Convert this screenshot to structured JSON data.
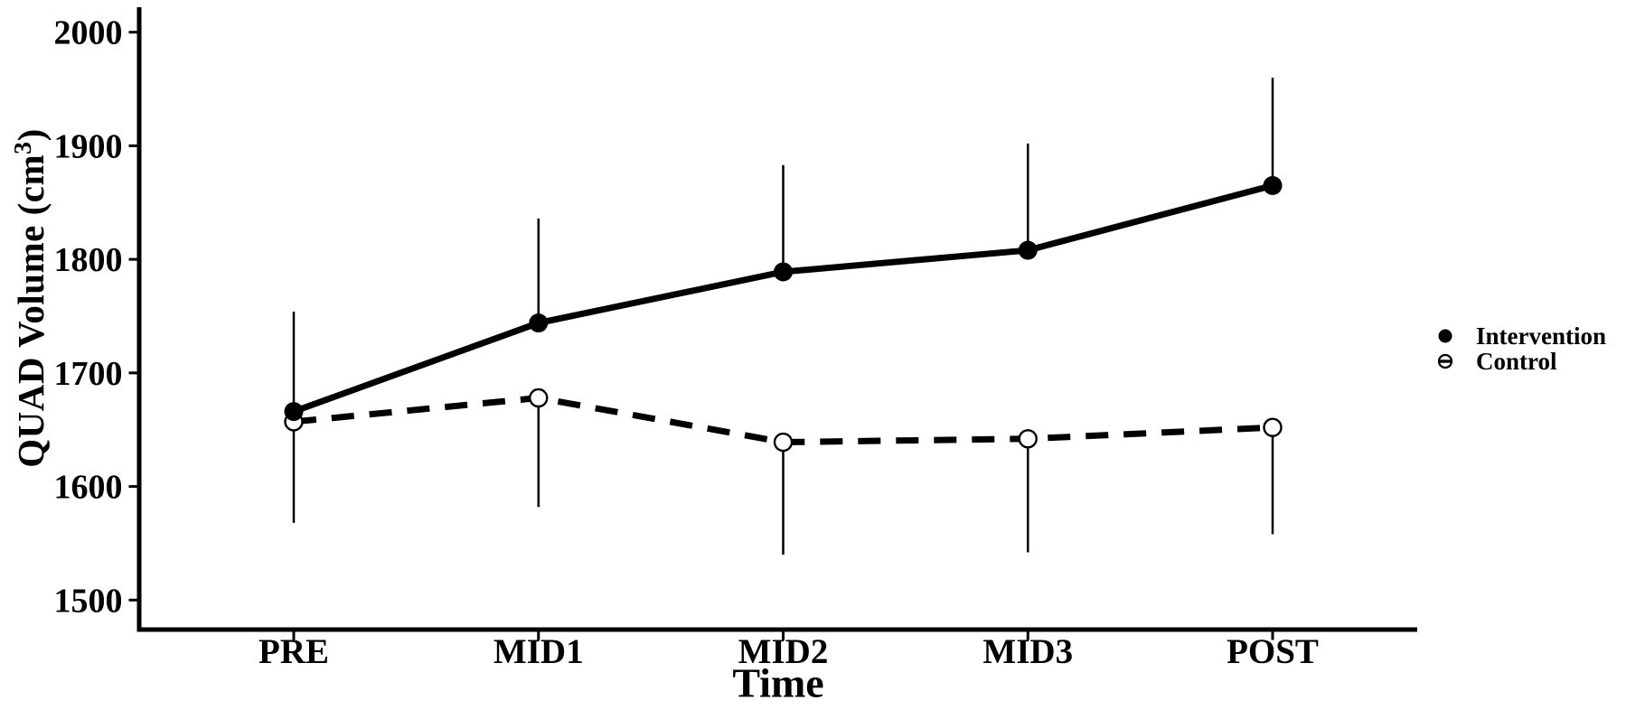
{
  "figure": {
    "background_color": "#ffffff",
    "ink_color": "#000000"
  },
  "chart_data": {
    "type": "line",
    "title": "",
    "xlabel": "Time",
    "ylabel": "QUAD Volume (cm³)",
    "ylabel_parts": {
      "prefix": "QUAD Volume (cm",
      "superscript": "3",
      "suffix": ")"
    },
    "categories": [
      "PRE",
      "MID1",
      "MID2",
      "MID3",
      "POST"
    ],
    "yticks": [
      1500,
      1600,
      1700,
      1800,
      1900,
      2000
    ],
    "ylim": [
      1474,
      2022
    ],
    "grid": false,
    "series": [
      {
        "name": "Intervention",
        "marker": "filled-circle",
        "line_style": "solid",
        "color": "#000000",
        "values": [
          1666,
          1744,
          1789,
          1808,
          1865
        ],
        "error_bar_direction": "up",
        "error_bar_ends": [
          1754,
          1836,
          1883,
          1902,
          1960
        ]
      },
      {
        "name": "Control",
        "marker": "open-circle",
        "line_style": "dashed",
        "color": "#000000",
        "values": [
          1657,
          1678,
          1639,
          1642,
          1652
        ],
        "error_bar_direction": "down",
        "error_bar_ends": [
          1568,
          1582,
          1540,
          1542,
          1558
        ]
      }
    ],
    "legend_position": "right-center",
    "legend": [
      {
        "label": "Intervention",
        "marker": "filled-circle"
      },
      {
        "label": "Control",
        "marker": "open-circle-dash"
      }
    ]
  }
}
